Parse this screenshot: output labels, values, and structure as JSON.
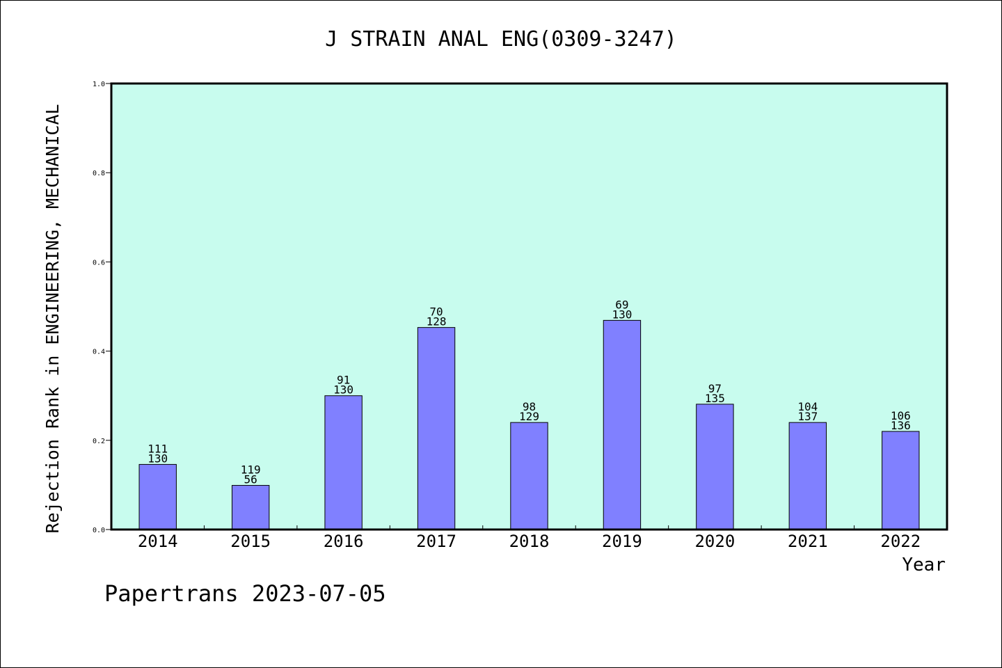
{
  "footer": {
    "credit": "Papertrans 2023-07-05"
  },
  "colors": {
    "plot_bg": "#c8fcee",
    "bar": "#8080ff",
    "frame": "#000000"
  },
  "chart_data": {
    "type": "bar",
    "title": "J STRAIN ANAL ENG(0309-3247)",
    "xlabel": "Year",
    "ylabel": "Rejection Rank in ENGINEERING, MECHANICAL",
    "ylim": [
      0,
      1.0
    ],
    "yticks": [
      "0.0",
      "0.2",
      "0.4",
      "0.6",
      "0.8",
      "1.0"
    ],
    "grid": false,
    "categories": [
      "2014",
      "2015",
      "2016",
      "2017",
      "2018",
      "2019",
      "2020",
      "2021",
      "2022"
    ],
    "values": [
      0.146,
      0.099,
      0.3,
      0.453,
      0.24,
      0.469,
      0.281,
      0.24,
      0.22
    ],
    "rank": [
      "111",
      "119",
      "91",
      "70",
      "98",
      "69",
      "97",
      "104",
      "106"
    ],
    "total": [
      "130",
      "56",
      "130",
      "128",
      "129",
      "130",
      "135",
      "137",
      "136"
    ]
  }
}
